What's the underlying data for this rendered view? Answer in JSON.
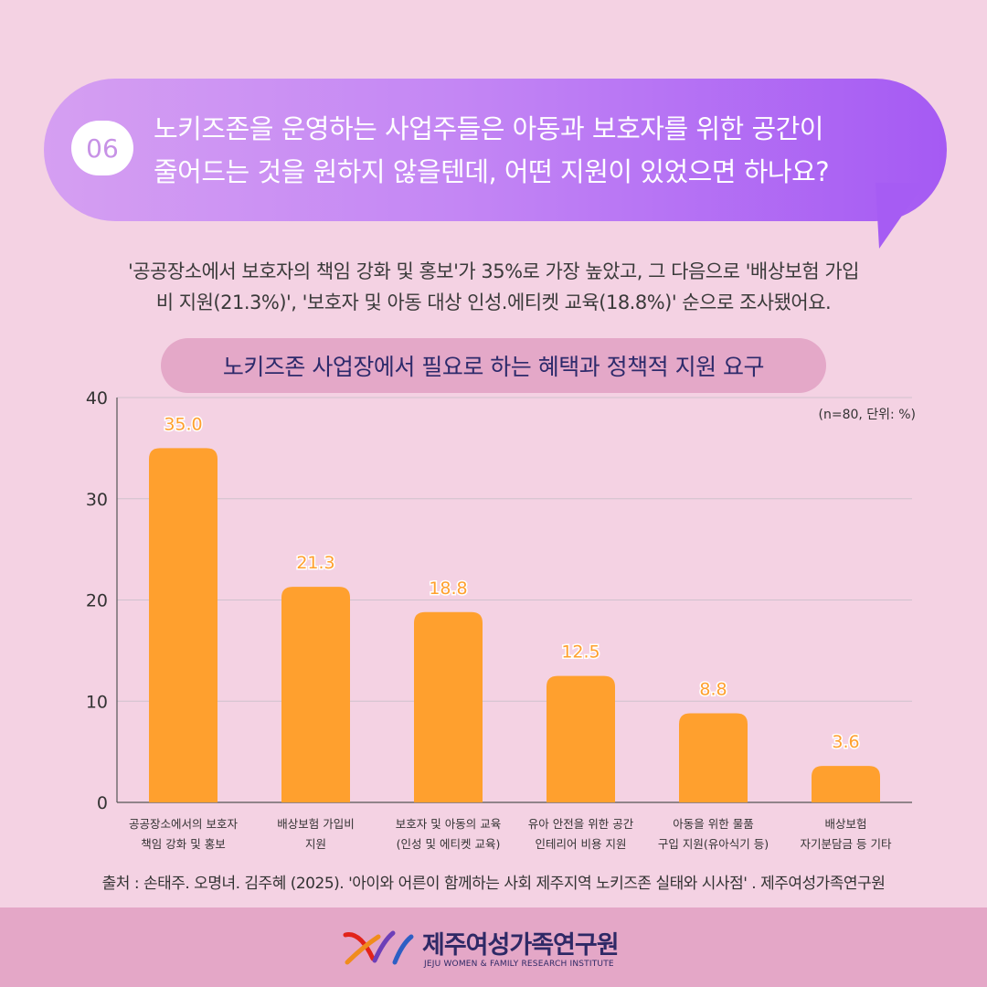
{
  "question": {
    "number": "06",
    "line1": "노키즈존을 운영하는 사업주들은 아동과 보호자를 위한 공간이",
    "line2": "줄어드는 것을 원하지 않을텐데, 어떤 지원이 있었으면 하나요?"
  },
  "summary": {
    "line1": "'공공장소에서 보호자의 책임 강화 및 홍보'가 35%로 가장 높았고, 그 다음으로 '배상보험 가입",
    "line2": "비 지원(21.3%)', '보호자 및 아동 대상 인성.에티켓 교육(18.8%)' 순으로 조사됐어요."
  },
  "unit_note": "(n=80, 단위: %)",
  "source": "출처 : 손태주. 오명녀. 김주혜 (2025). '아이와 어른이 함께하는 사회 제주지역 노키즈존 실태와 시사점' . 제주여성가족연구원",
  "institute": {
    "name": "제주여성가족연구원",
    "english": "JEJU WOMEN & FAMILY RESEARCH INSTITUTE"
  },
  "colors": {
    "bar": "#ffa02e",
    "label": "#ffa02e",
    "grid": "#cfc2cd",
    "axis": "#555555"
  },
  "chart_data": {
    "type": "bar",
    "title": "노키즈존 사업장에서 필요로 하는 혜택과 정책적 지원 요구",
    "categories": [
      [
        "공공장소에서의 보호자",
        "책임 강화 및 홍보"
      ],
      [
        "배상보험 가입비",
        "지원"
      ],
      [
        "보호자 및 아동의 교육",
        "(인성 및 에티켓 교육)"
      ],
      [
        "유아 안전을 위한 공간",
        "인테리어 비용 지원"
      ],
      [
        "아동을 위한 물품",
        "구입 지원(유아식기 등)"
      ],
      [
        "배상보험",
        "자기분담금 등 기타"
      ]
    ],
    "values": [
      35.0,
      21.3,
      18.8,
      12.5,
      8.8,
      3.6
    ],
    "value_labels": [
      "35.0",
      "21.3",
      "18.8",
      "12.5",
      "8.8",
      "3.6"
    ],
    "ylim": [
      0,
      40
    ],
    "yticks": [
      "0",
      "10",
      "20",
      "30",
      "40"
    ],
    "grid": true
  }
}
